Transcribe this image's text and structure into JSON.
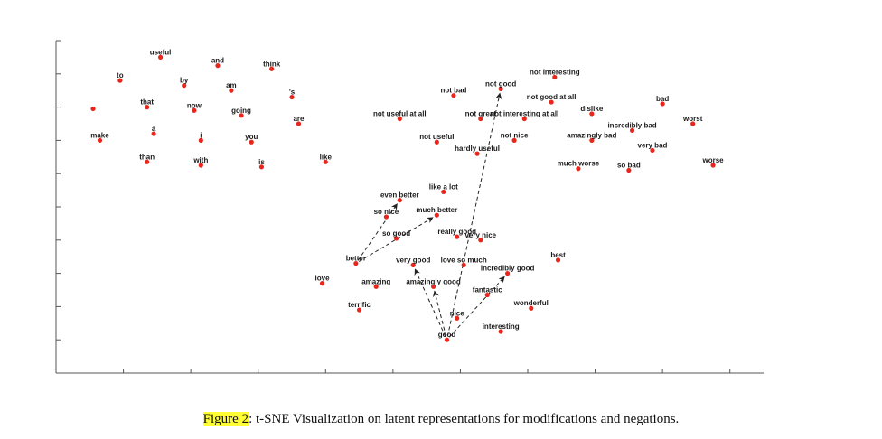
{
  "caption": {
    "label": "Figure 2",
    "text": ": t-SNE Visualization on latent representations for modifications and negations."
  },
  "colors": {
    "point": "#e8261c",
    "highlight": "#ffff33"
  },
  "chart_data": {
    "type": "scatter",
    "title": "",
    "xlabel": "",
    "ylabel": "",
    "xlim": [
      0,
      10.5
    ],
    "ylim": [
      0,
      10
    ],
    "grid": false,
    "axis_tick_labels": false,
    "x_ticks": [
      1,
      2,
      3,
      4,
      5,
      6,
      7,
      8,
      9,
      10
    ],
    "y_ticks": [
      1,
      2,
      3,
      4,
      5,
      6,
      7,
      8,
      9,
      10
    ],
    "points": [
      {
        "label": "useful",
        "x": 1.55,
        "y": 9.5
      },
      {
        "label": "and",
        "x": 2.4,
        "y": 9.25
      },
      {
        "label": "think",
        "x": 3.2,
        "y": 9.15
      },
      {
        "label": "to",
        "x": 0.95,
        "y": 8.8
      },
      {
        "label": "by",
        "x": 1.9,
        "y": 8.65
      },
      {
        "label": "am",
        "x": 2.6,
        "y": 8.5
      },
      {
        "label": "'s",
        "x": 3.5,
        "y": 8.3
      },
      {
        "label": "",
        "x": 0.55,
        "y": 7.95
      },
      {
        "label": "that",
        "x": 1.35,
        "y": 8.0
      },
      {
        "label": "now",
        "x": 2.05,
        "y": 7.9
      },
      {
        "label": "going",
        "x": 2.75,
        "y": 7.75
      },
      {
        "label": "are",
        "x": 3.6,
        "y": 7.5
      },
      {
        "label": "make",
        "x": 0.65,
        "y": 7.0
      },
      {
        "label": "a",
        "x": 1.45,
        "y": 7.2
      },
      {
        "label": "i",
        "x": 2.15,
        "y": 7.0
      },
      {
        "label": "you",
        "x": 2.9,
        "y": 6.95
      },
      {
        "label": "than",
        "x": 1.35,
        "y": 6.35
      },
      {
        "label": "with",
        "x": 2.15,
        "y": 6.25
      },
      {
        "label": "is",
        "x": 3.05,
        "y": 6.2
      },
      {
        "label": "like",
        "x": 4.0,
        "y": 6.35
      },
      {
        "label": "not interesting",
        "x": 7.4,
        "y": 8.9
      },
      {
        "label": "not good",
        "x": 6.6,
        "y": 8.55
      },
      {
        "label": "not bad",
        "x": 5.9,
        "y": 8.35
      },
      {
        "label": "not good at all",
        "x": 7.35,
        "y": 8.15
      },
      {
        "label": "bad",
        "x": 9.0,
        "y": 8.1
      },
      {
        "label": "dislike",
        "x": 7.95,
        "y": 7.8
      },
      {
        "label": "not useful at all",
        "x": 5.1,
        "y": 7.65
      },
      {
        "label": "not great",
        "x": 6.3,
        "y": 7.65
      },
      {
        "label": "not interesting at all",
        "x": 6.95,
        "y": 7.65
      },
      {
        "label": "worst",
        "x": 9.45,
        "y": 7.5
      },
      {
        "label": "incredibly bad",
        "x": 8.55,
        "y": 7.3
      },
      {
        "label": "not useful",
        "x": 5.65,
        "y": 6.95
      },
      {
        "label": "not nice",
        "x": 6.8,
        "y": 7.0
      },
      {
        "label": "amazingly bad",
        "x": 7.95,
        "y": 7.0
      },
      {
        "label": "very bad",
        "x": 8.85,
        "y": 6.7
      },
      {
        "label": "hardly useful",
        "x": 6.25,
        "y": 6.6
      },
      {
        "label": "worse",
        "x": 9.75,
        "y": 6.25
      },
      {
        "label": "much worse",
        "x": 7.75,
        "y": 6.15
      },
      {
        "label": "so bad",
        "x": 8.5,
        "y": 6.1
      },
      {
        "label": "like a lot",
        "x": 5.75,
        "y": 5.45
      },
      {
        "label": "even better",
        "x": 5.1,
        "y": 5.2
      },
      {
        "label": "much better",
        "x": 5.65,
        "y": 4.75
      },
      {
        "label": "so nice",
        "x": 4.9,
        "y": 4.7
      },
      {
        "label": "so good",
        "x": 5.05,
        "y": 4.05
      },
      {
        "label": "really good",
        "x": 5.95,
        "y": 4.1
      },
      {
        "label": "very nice",
        "x": 6.3,
        "y": 4.0
      },
      {
        "label": "better",
        "x": 4.45,
        "y": 3.3
      },
      {
        "label": "very good",
        "x": 5.3,
        "y": 3.25
      },
      {
        "label": "love so much",
        "x": 6.05,
        "y": 3.25
      },
      {
        "label": "best",
        "x": 7.45,
        "y": 3.4
      },
      {
        "label": "incredibly good",
        "x": 6.7,
        "y": 3.0
      },
      {
        "label": "love",
        "x": 3.95,
        "y": 2.7
      },
      {
        "label": "amazing",
        "x": 4.75,
        "y": 2.6
      },
      {
        "label": "amazingly good",
        "x": 5.6,
        "y": 2.6
      },
      {
        "label": "fantastic",
        "x": 6.4,
        "y": 2.35
      },
      {
        "label": "terrific",
        "x": 4.5,
        "y": 1.9
      },
      {
        "label": "wonderful",
        "x": 7.05,
        "y": 1.95
      },
      {
        "label": "nice",
        "x": 5.95,
        "y": 1.65
      },
      {
        "label": "interesting",
        "x": 6.6,
        "y": 1.25
      },
      {
        "label": "good",
        "x": 5.8,
        "y": 1.0
      }
    ],
    "arrows": [
      {
        "from": "good",
        "to": "not good"
      },
      {
        "from": "good",
        "to": "very good"
      },
      {
        "from": "good",
        "to": "amazingly good"
      },
      {
        "from": "good",
        "to": "incredibly good"
      },
      {
        "from": "better",
        "to": "even better"
      },
      {
        "from": "better",
        "to": "much better"
      }
    ]
  }
}
